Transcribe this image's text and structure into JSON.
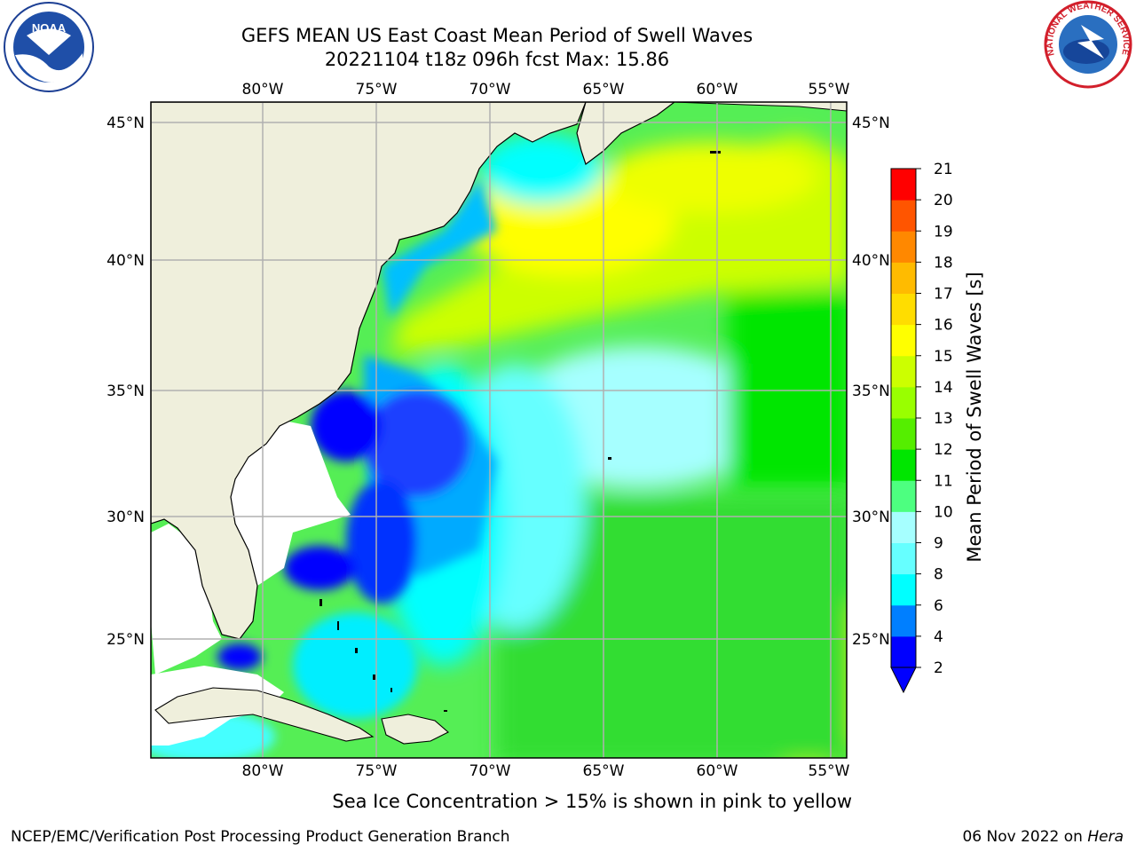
{
  "header": {
    "title_line1": "GEFS MEAN US East Coast Mean Period of Swell Waves",
    "title_line2": "20221104 t18z 096h fcst   Max: 15.86"
  },
  "logos": {
    "left": "noaa-logo",
    "right": "national-weather-service-logo",
    "left_text": "NOAA",
    "right_text": "NATIONAL WEATHER SERVICE"
  },
  "map": {
    "lon_labels": [
      "80°W",
      "75°W",
      "70°W",
      "65°W",
      "60°W",
      "55°W"
    ],
    "lat_labels": [
      "45°N",
      "40°N",
      "35°N",
      "30°N",
      "25°N"
    ],
    "land_color": "#efefdc",
    "grid_color": "#b0b0b0"
  },
  "colorbar": {
    "label": "Mean Period of Swell Waves [s]",
    "ticks": [
      "2",
      "4",
      "6",
      "8",
      "9",
      "10",
      "11",
      "12",
      "13",
      "14",
      "15",
      "16",
      "17",
      "18",
      "19",
      "20",
      "21"
    ],
    "colors": [
      "#0000ff",
      "#007fff",
      "#00ffff",
      "#66ffff",
      "#a6ffff",
      "#4dff80",
      "#00e600",
      "#55ee00",
      "#99ff00",
      "#ccff00",
      "#ffff00",
      "#ffdd00",
      "#ffbb00",
      "#ff8800",
      "#ff5500",
      "#ff0000"
    ],
    "under_color": "#0000ff"
  },
  "footer": {
    "note": "Sea Ice Concentration > 15% is shown in pink to yellow",
    "left": "NCEP/EMC/Verification Post Processing Product Generation Branch",
    "right_date": "06 Nov 2022 on ",
    "right_machine": "Hera"
  }
}
